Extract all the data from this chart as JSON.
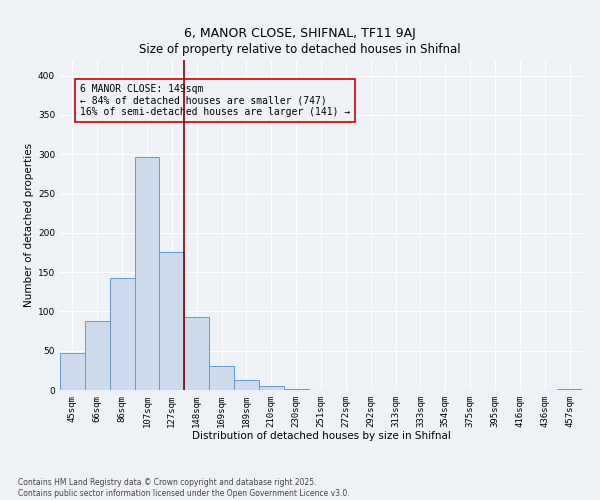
{
  "title": "6, MANOR CLOSE, SHIFNAL, TF11 9AJ",
  "subtitle": "Size of property relative to detached houses in Shifnal",
  "xlabel": "Distribution of detached houses by size in Shifnal",
  "ylabel": "Number of detached properties",
  "bar_labels": [
    "45sqm",
    "66sqm",
    "86sqm",
    "107sqm",
    "127sqm",
    "148sqm",
    "169sqm",
    "189sqm",
    "210sqm",
    "230sqm",
    "251sqm",
    "272sqm",
    "292sqm",
    "313sqm",
    "333sqm",
    "354sqm",
    "375sqm",
    "395sqm",
    "416sqm",
    "436sqm",
    "457sqm"
  ],
  "bar_values": [
    47,
    88,
    143,
    297,
    175,
    93,
    30,
    13,
    5,
    1,
    0,
    0,
    0,
    0,
    0,
    0,
    0,
    0,
    0,
    0,
    1
  ],
  "bar_color": "#ccdaec",
  "bar_edge_color": "#6699cc",
  "vline_x": 4.5,
  "vline_color": "#8b0000",
  "annotation_text": "6 MANOR CLOSE: 149sqm\n← 84% of detached houses are smaller (747)\n16% of semi-detached houses are larger (141) →",
  "annotation_box_color": "#cc0000",
  "ylim": [
    0,
    420
  ],
  "yticks": [
    0,
    50,
    100,
    150,
    200,
    250,
    300,
    350,
    400
  ],
  "background_color": "#eef2f7",
  "footer_line1": "Contains HM Land Registry data © Crown copyright and database right 2025.",
  "footer_line2": "Contains public sector information licensed under the Open Government Licence v3.0.",
  "title_fontsize": 9,
  "axis_label_fontsize": 7.5,
  "tick_fontsize": 6.5,
  "annotation_fontsize": 7,
  "footer_fontsize": 5.5
}
